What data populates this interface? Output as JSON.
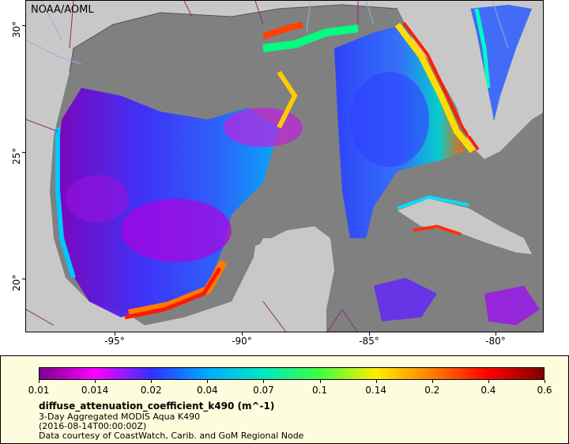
{
  "map": {
    "credit": "NOAA/AOML",
    "lon_ticks": [
      {
        "value": -95,
        "label": "-95°"
      },
      {
        "value": -90,
        "label": "-90°"
      },
      {
        "value": -85,
        "label": "-85°"
      },
      {
        "value": -80,
        "label": "-80°"
      }
    ],
    "lat_ticks": [
      {
        "value": 30,
        "label": "30°"
      },
      {
        "value": 25,
        "label": "25°"
      },
      {
        "value": 20,
        "label": "20°"
      }
    ],
    "lon_range": [
      -98,
      -77.7
    ],
    "lat_range": [
      18,
      31
    ],
    "colors": {
      "land": "#c8c8c8",
      "cloud_nodata": "#808080",
      "coastline": "#555555",
      "rivers": "#8fb4d8",
      "borders": "#8b2a70"
    }
  },
  "legend": {
    "ticks": [
      "0.01",
      "0.014",
      "0.02",
      "0.04",
      "0.07",
      "0.1",
      "0.14",
      "0.2",
      "0.4",
      "0.6"
    ],
    "variable": "diffuse_attenuation_coefficient_k490 (m^-1)",
    "line1": "3-Day Aggregated MODIS Aqua K490",
    "line2": "(2016-08-14T00:00:00Z)",
    "line3": "Data courtesy of CoastWatch, Carib. and GoM Regional Node",
    "gradient": [
      "#7a0090",
      "#ff00ff",
      "#3030ff",
      "#00aaff",
      "#00e8c0",
      "#40ff40",
      "#ffee00",
      "#ff8000",
      "#ff0000",
      "#800000"
    ]
  }
}
